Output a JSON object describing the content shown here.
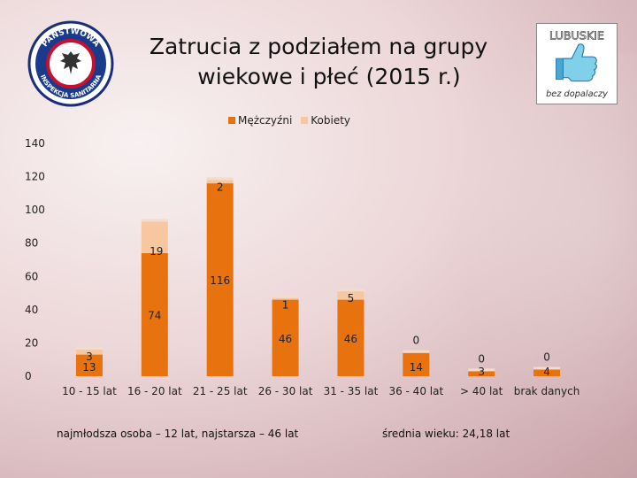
{
  "title_line1": "Zatrucia z podziałem na grupy",
  "title_line2": "wiekowe i płeć (2015 r.)",
  "logo_left": {
    "top_text": "PAŃSTWOWA",
    "bottom_text": "INSPEKCJA SANITARNA"
  },
  "logo_right": {
    "top_text": "LUBUSKIE",
    "bottom_text": "bez dopalaczy"
  },
  "colors": {
    "men": "#e8730e",
    "women": "#f7c7a0",
    "text": "#222222"
  },
  "chart_data": {
    "type": "bar",
    "stacked": true,
    "categories": [
      "10 - 15 lat",
      "16 - 20 lat",
      "21 - 25 lat",
      "26 - 30 lat",
      "31 - 35 lat",
      "36 - 40 lat",
      "> 40 lat",
      "brak danych"
    ],
    "series": [
      {
        "name": "Mężczyźni",
        "values": [
          13,
          74,
          116,
          46,
          46,
          14,
          3,
          4
        ]
      },
      {
        "name": "Kobiety",
        "values": [
          3,
          19,
          2,
          1,
          5,
          0,
          0,
          0
        ]
      }
    ],
    "yticks": [
      "0",
      "20",
      "40",
      "60",
      "80",
      "100",
      "120",
      "140"
    ],
    "ylim": [
      0,
      140
    ],
    "legend": "top"
  },
  "notes": {
    "left": "najmłodsza osoba – 12 lat,   najstarsza – 46 lat",
    "right": "średnia wieku: 24,18 lat"
  }
}
